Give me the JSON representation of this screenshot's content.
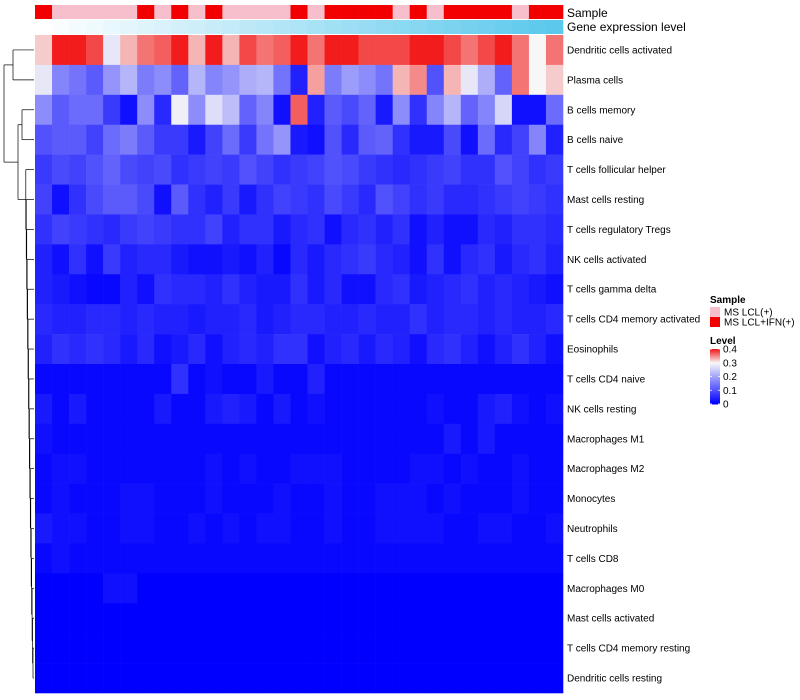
{
  "chart_data": {
    "type": "heatmap",
    "title": "",
    "column_annotations": [
      {
        "name": "Sample",
        "values": [
          "MS LCL+IFN(+)",
          "MS LCL(+)",
          "MS LCL(+)",
          "MS LCL(+)",
          "MS LCL(+)",
          "MS LCL(+)",
          "MS LCL+IFN(+)",
          "MS LCL(+)",
          "MS LCL+IFN(+)",
          "MS LCL(+)",
          "MS LCL+IFN(+)",
          "MS LCL(+)",
          "MS LCL(+)",
          "MS LCL(+)",
          "MS LCL(+)",
          "MS LCL+IFN(+)",
          "MS LCL(+)",
          "MS LCL+IFN(+)",
          "MS LCL+IFN(+)",
          "MS LCL+IFN(+)",
          "MS LCL+IFN(+)",
          "MS LCL(+)",
          "MS LCL+IFN(+)",
          "MS LCL(+)",
          "MS LCL+IFN(+)",
          "MS LCL+IFN(+)",
          "MS LCL+IFN(+)",
          "MS LCL+IFN(+)",
          "MS LCL(+)",
          "MS LCL+IFN(+)",
          "MS LCL+IFN(+)"
        ]
      },
      {
        "name": "Gene expression level",
        "values": [
          0.0,
          0.033,
          0.067,
          0.1,
          0.133,
          0.167,
          0.2,
          0.233,
          0.267,
          0.3,
          0.333,
          0.367,
          0.4,
          0.433,
          0.467,
          0.5,
          0.533,
          0.567,
          0.6,
          0.633,
          0.667,
          0.7,
          0.733,
          0.767,
          0.8,
          0.833,
          0.867,
          0.9,
          0.933,
          0.967,
          1.0
        ]
      }
    ],
    "rows": [
      "Dendritic cells activated",
      "Plasma cells",
      "B cells memory",
      "B cells naive",
      "T cells follicular helper",
      "Mast cells resting",
      "T cells regulatory  Tregs",
      "NK cells activated",
      "T cells gamma delta",
      "T cells CD4 memory activated",
      "Eosinophils",
      "T cells CD4 naive",
      "NK cells resting",
      "Macrophages M1",
      "Macrophages M2",
      "Monocytes",
      "Neutrophils",
      "T cells CD8",
      "Macrophages M0",
      "Mast cells activated",
      "T cells CD4 memory resting",
      "Dendritic cells resting"
    ],
    "values": [
      [
        0.32,
        0.4,
        0.4,
        0.38,
        0.28,
        0.33,
        0.36,
        0.37,
        0.4,
        0.33,
        0.4,
        0.33,
        0.38,
        0.36,
        0.37,
        0.4,
        0.36,
        0.4,
        0.4,
        0.38,
        0.38,
        0.38,
        0.4,
        0.4,
        0.38,
        0.36,
        0.38,
        0.4,
        0.36,
        0.3,
        0.36
      ],
      [
        0.28,
        0.16,
        0.14,
        0.11,
        0.18,
        0.22,
        0.15,
        0.17,
        0.12,
        0.22,
        0.16,
        0.18,
        0.21,
        0.22,
        0.14,
        0.04,
        0.34,
        0.15,
        0.19,
        0.17,
        0.14,
        0.33,
        0.35,
        0.1,
        0.33,
        0.28,
        0.21,
        0.12,
        0.36,
        0.3,
        0.32
      ],
      [
        0.17,
        0.11,
        0.13,
        0.13,
        0.07,
        0.02,
        0.17,
        0.05,
        0.29,
        0.17,
        0.27,
        0.23,
        0.12,
        0.16,
        0.02,
        0.37,
        0.04,
        0.11,
        0.09,
        0.12,
        0.03,
        0.17,
        0.06,
        0.16,
        0.22,
        0.12,
        0.16,
        0.26,
        0.02,
        0.02,
        0.13
      ],
      [
        0.1,
        0.11,
        0.11,
        0.08,
        0.13,
        0.15,
        0.11,
        0.07,
        0.07,
        0.03,
        0.08,
        0.13,
        0.07,
        0.14,
        0.18,
        0.03,
        0.02,
        0.1,
        0.05,
        0.11,
        0.12,
        0.06,
        0.03,
        0.03,
        0.09,
        0.02,
        0.13,
        0.05,
        0.08,
        0.16,
        0.04
      ],
      [
        0.07,
        0.09,
        0.08,
        0.1,
        0.12,
        0.09,
        0.08,
        0.09,
        0.06,
        0.07,
        0.08,
        0.07,
        0.1,
        0.08,
        0.06,
        0.07,
        0.08,
        0.1,
        0.09,
        0.07,
        0.06,
        0.05,
        0.06,
        0.07,
        0.08,
        0.06,
        0.06,
        0.1,
        0.08,
        0.06,
        0.07
      ],
      [
        0.08,
        0.02,
        0.06,
        0.09,
        0.11,
        0.11,
        0.09,
        0.02,
        0.11,
        0.06,
        0.04,
        0.07,
        0.03,
        0.06,
        0.08,
        0.07,
        0.06,
        0.09,
        0.07,
        0.05,
        0.1,
        0.08,
        0.06,
        0.07,
        0.05,
        0.05,
        0.06,
        0.07,
        0.08,
        0.07,
        0.06
      ],
      [
        0.06,
        0.08,
        0.07,
        0.06,
        0.05,
        0.07,
        0.08,
        0.07,
        0.06,
        0.06,
        0.08,
        0.04,
        0.06,
        0.06,
        0.03,
        0.05,
        0.06,
        0.02,
        0.05,
        0.06,
        0.04,
        0.06,
        0.02,
        0.04,
        0.02,
        0.02,
        0.05,
        0.04,
        0.06,
        0.06,
        0.05
      ],
      [
        0.04,
        0.02,
        0.06,
        0.02,
        0.07,
        0.04,
        0.05,
        0.05,
        0.03,
        0.02,
        0.02,
        0.03,
        0.02,
        0.04,
        0.01,
        0.05,
        0.03,
        0.05,
        0.06,
        0.07,
        0.05,
        0.04,
        0.02,
        0.06,
        0.02,
        0.05,
        0.06,
        0.03,
        0.05,
        0.06,
        0.04
      ],
      [
        0.04,
        0.03,
        0.02,
        0.01,
        0.01,
        0.04,
        0.02,
        0.06,
        0.05,
        0.05,
        0.04,
        0.06,
        0.04,
        0.03,
        0.03,
        0.06,
        0.03,
        0.05,
        0.02,
        0.02,
        0.05,
        0.06,
        0.03,
        0.04,
        0.05,
        0.06,
        0.04,
        0.05,
        0.04,
        0.03,
        0.02
      ],
      [
        0.05,
        0.04,
        0.04,
        0.05,
        0.05,
        0.04,
        0.05,
        0.04,
        0.04,
        0.03,
        0.04,
        0.04,
        0.05,
        0.03,
        0.04,
        0.05,
        0.05,
        0.04,
        0.04,
        0.05,
        0.04,
        0.04,
        0.06,
        0.04,
        0.05,
        0.05,
        0.04,
        0.05,
        0.04,
        0.04,
        0.05
      ],
      [
        0.04,
        0.06,
        0.05,
        0.06,
        0.05,
        0.03,
        0.05,
        0.02,
        0.03,
        0.05,
        0.02,
        0.04,
        0.05,
        0.04,
        0.06,
        0.06,
        0.02,
        0.04,
        0.05,
        0.03,
        0.05,
        0.04,
        0.02,
        0.05,
        0.06,
        0.04,
        0.02,
        0.04,
        0.06,
        0.04,
        0.02
      ],
      [
        0.01,
        0.01,
        0.01,
        0.01,
        0.01,
        0.01,
        0.01,
        0.01,
        0.06,
        0.01,
        0.02,
        0.01,
        0.01,
        0.03,
        0.01,
        0.01,
        0.04,
        0.01,
        0.01,
        0.01,
        0.01,
        0.01,
        0.01,
        0.01,
        0.01,
        0.01,
        0.01,
        0.01,
        0.01,
        0.01,
        0.01
      ],
      [
        0.03,
        0.01,
        0.03,
        0.01,
        0.01,
        0.01,
        0.01,
        0.03,
        0.01,
        0.01,
        0.03,
        0.04,
        0.03,
        0.01,
        0.03,
        0.01,
        0.02,
        0.01,
        0.01,
        0.01,
        0.01,
        0.01,
        0.01,
        0.02,
        0.01,
        0.01,
        0.03,
        0.04,
        0.02,
        0.01,
        0.02
      ],
      [
        0.02,
        0.01,
        0.01,
        0.01,
        0.01,
        0.01,
        0.01,
        0.01,
        0.01,
        0.01,
        0.01,
        0.01,
        0.01,
        0.01,
        0.01,
        0.01,
        0.01,
        0.01,
        0.01,
        0.01,
        0.01,
        0.01,
        0.01,
        0.01,
        0.03,
        0.01,
        0.03,
        0.01,
        0.01,
        0.01,
        0.01
      ],
      [
        0.01,
        0.02,
        0.02,
        0.01,
        0.01,
        0.01,
        0.01,
        0.01,
        0.01,
        0.01,
        0.02,
        0.01,
        0.02,
        0.01,
        0.01,
        0.02,
        0.02,
        0.02,
        0.01,
        0.01,
        0.01,
        0.01,
        0.02,
        0.02,
        0.01,
        0.02,
        0.01,
        0.01,
        0.02,
        0.01,
        0.01
      ],
      [
        0.01,
        0.02,
        0.01,
        0.01,
        0.01,
        0.02,
        0.02,
        0.01,
        0.01,
        0.01,
        0.02,
        0.01,
        0.01,
        0.01,
        0.02,
        0.01,
        0.01,
        0.02,
        0.01,
        0.01,
        0.02,
        0.02,
        0.02,
        0.01,
        0.02,
        0.01,
        0.01,
        0.01,
        0.02,
        0.01,
        0.01
      ],
      [
        0.03,
        0.02,
        0.02,
        0.01,
        0.01,
        0.02,
        0.02,
        0.01,
        0.01,
        0.02,
        0.01,
        0.02,
        0.01,
        0.02,
        0.02,
        0.01,
        0.01,
        0.02,
        0.01,
        0.01,
        0.02,
        0.02,
        0.02,
        0.02,
        0.01,
        0.01,
        0.02,
        0.02,
        0.01,
        0.01,
        0.02
      ],
      [
        0.01,
        0.02,
        0.01,
        0.01,
        0.01,
        0.01,
        0.01,
        0.01,
        0.01,
        0.01,
        0.01,
        0.01,
        0.01,
        0.01,
        0.01,
        0.01,
        0.01,
        0.01,
        0.01,
        0.01,
        0.01,
        0.01,
        0.01,
        0.01,
        0.01,
        0.01,
        0.01,
        0.01,
        0.01,
        0.01,
        0.01
      ],
      [
        0.0,
        0.0,
        0.0,
        0.0,
        0.02,
        0.02,
        0.0,
        0.0,
        0.0,
        0.0,
        0.0,
        0.0,
        0.0,
        0.0,
        0.0,
        0.0,
        0.0,
        0.0,
        0.0,
        0.0,
        0.0,
        0.0,
        0.0,
        0.0,
        0.0,
        0.0,
        0.0,
        0.0,
        0.0,
        0.0,
        0.0
      ],
      [
        0.0,
        0.0,
        0.0,
        0.0,
        0.0,
        0.0,
        0.0,
        0.0,
        0.0,
        0.0,
        0.0,
        0.0,
        0.0,
        0.0,
        0.0,
        0.0,
        0.0,
        0.0,
        0.0,
        0.0,
        0.0,
        0.0,
        0.0,
        0.0,
        0.0,
        0.0,
        0.0,
        0.0,
        0.0,
        0.0,
        0.0
      ],
      [
        0.0,
        0.0,
        0.0,
        0.0,
        0.0,
        0.0,
        0.0,
        0.0,
        0.0,
        0.0,
        0.0,
        0.0,
        0.0,
        0.0,
        0.0,
        0.0,
        0.0,
        0.0,
        0.0,
        0.0,
        0.0,
        0.0,
        0.0,
        0.0,
        0.0,
        0.0,
        0.0,
        0.0,
        0.0,
        0.0,
        0.0
      ],
      [
        0.0,
        0.0,
        0.0,
        0.0,
        0.0,
        0.0,
        0.0,
        0.0,
        0.0,
        0.0,
        0.0,
        0.0,
        0.0,
        0.0,
        0.0,
        0.0,
        0.0,
        0.0,
        0.0,
        0.0,
        0.0,
        0.0,
        0.0,
        0.0,
        0.0,
        0.0,
        0.0,
        0.0,
        0.0,
        0.0,
        0.0
      ]
    ],
    "color_scale": {
      "min": 0,
      "mid": 0.3,
      "max": 0.4,
      "low_color": "#0000FF",
      "mid_color": "#F7F7F7",
      "high_color": "#F21C1C"
    },
    "legend": {
      "sample_title": "Sample",
      "sample_entries": [
        {
          "label": "MS LCL(+)",
          "color": "#F7BFCB"
        },
        {
          "label": "MS LCL+IFN(+)",
          "color": "#F20000"
        }
      ],
      "level_title": "Level",
      "level_ticks": [
        0.4,
        0.3,
        0.2,
        0.1,
        0
      ],
      "level_tick_labels": [
        "0.4",
        "0.3",
        "0.2",
        "0.1",
        "0"
      ]
    },
    "expression_bar_colors": {
      "start": "#FFFFFF",
      "end": "#5BC8EC"
    },
    "row_dendrogram": true,
    "legend_position": "right"
  }
}
